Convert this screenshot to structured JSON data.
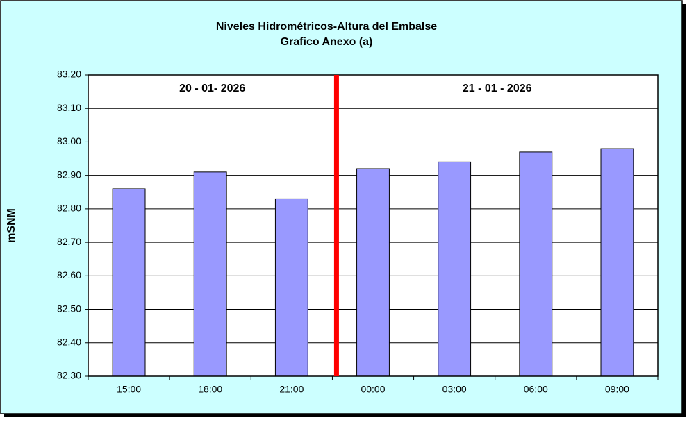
{
  "chart_data": {
    "type": "bar",
    "title": "Niveles Hidrométricos-Altura del Embalse",
    "subtitle": "Grafico Anexo (a)",
    "y_label": "mSNM",
    "annotations": [
      "20 - 01- 2026",
      "21 - 01 - 2026"
    ],
    "categories": [
      "15:00",
      "18:00",
      "21:00",
      "00:00",
      "03:00",
      "06:00",
      "09:00"
    ],
    "values": [
      82.86,
      82.91,
      82.83,
      82.92,
      82.94,
      82.97,
      82.98
    ],
    "color": "#9999ff",
    "ylim": [
      82.3,
      83.2
    ],
    "yticks": [
      {
        "value": 82.3,
        "label": "82.30"
      },
      {
        "value": 82.4,
        "label": "82.40"
      },
      {
        "value": 82.5,
        "label": "82.50"
      },
      {
        "value": 82.6,
        "label": "82.60"
      },
      {
        "value": 82.7,
        "label": "82.70"
      },
      {
        "value": 82.8,
        "label": "82.80"
      },
      {
        "value": 82.9,
        "label": "82.90"
      },
      {
        "value": 83.0,
        "label": "83.00"
      },
      {
        "value": 83.1,
        "label": "83.10"
      },
      {
        "value": 83.2,
        "label": "83.20"
      }
    ],
    "grid": true
  }
}
